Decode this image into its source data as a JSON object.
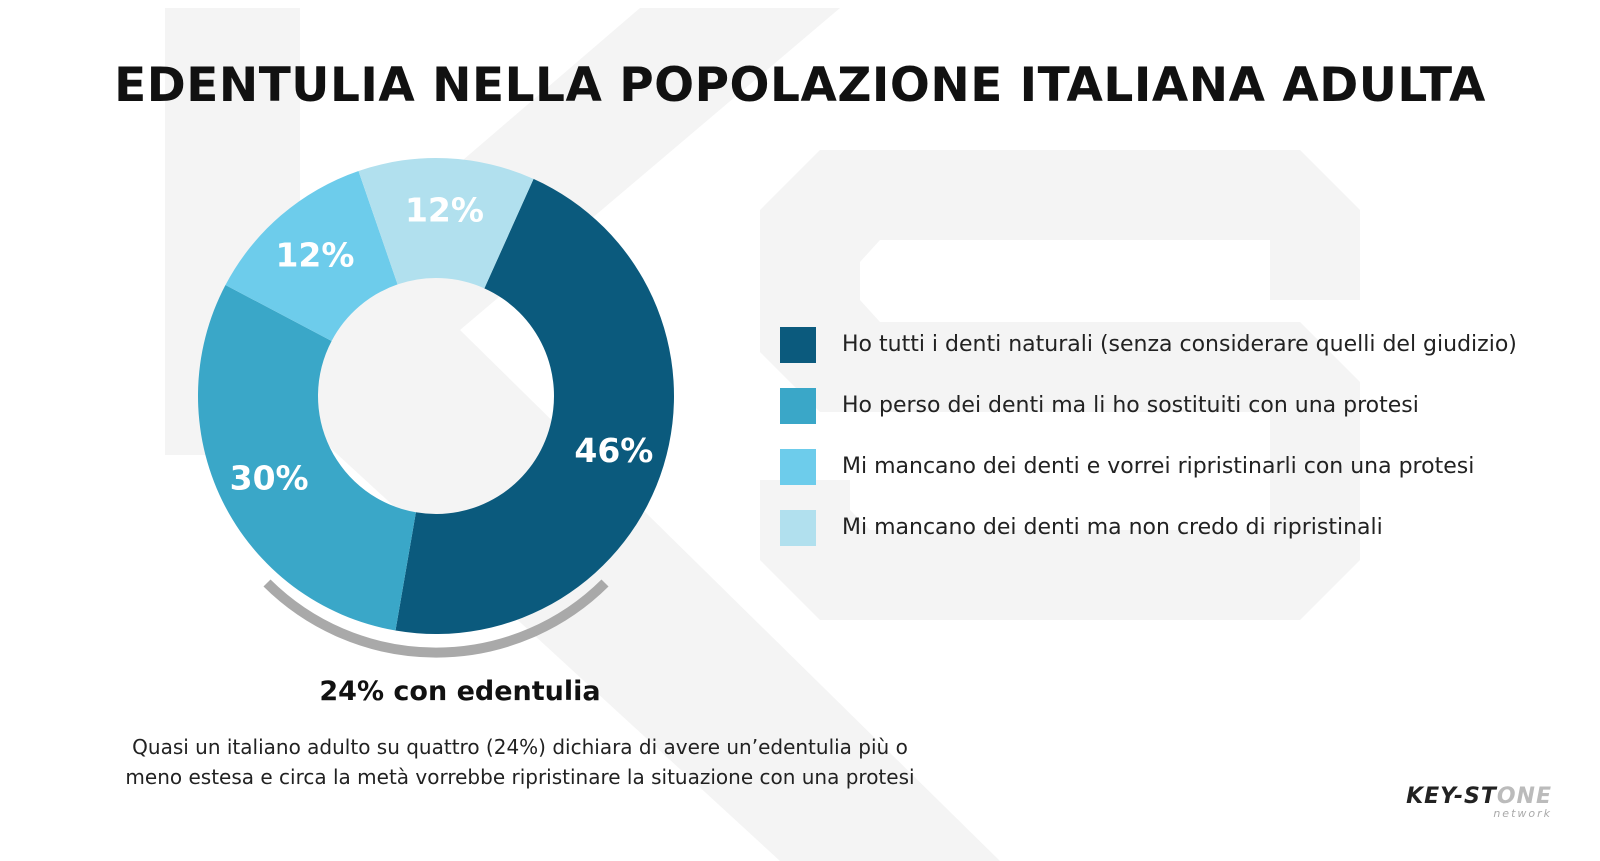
{
  "title": "EDENTULIA NELLA POPOLAZIONE ITALIANA ADULTA",
  "chart_data": {
    "type": "pie",
    "title": "EDENTULIA NELLA POPOLAZIONE ITALIANA ADULTA",
    "categories": [
      "Ho tutti i denti naturali (senza considerare quelli del giudizio)",
      "Ho perso dei denti ma li ho sostituiti con una protesi",
      "Mi mancano dei denti e vorrei ripristinarli con una protesi",
      "Mi mancano dei denti ma non credo di ripristinali"
    ],
    "values": [
      46,
      30,
      12,
      12
    ],
    "value_labels": [
      "46%",
      "30%",
      "12%",
      "12%"
    ],
    "colors": [
      "#0b5a7d",
      "#3aa7c8",
      "#6dcceb",
      "#b1e0ee"
    ],
    "legend_position": "right",
    "donut": true
  },
  "summary": "24% con edentulia",
  "note_lines": [
    "Quasi un italiano adulto su quattro (24%) dichiara di avere un’edentulia più o",
    "meno estesa e circa la metà vorrebbe ripristinare la situazione con una protesi"
  ],
  "logo": {
    "main_a": "KEY-ST",
    "main_b": "ONE",
    "sub": "network"
  }
}
